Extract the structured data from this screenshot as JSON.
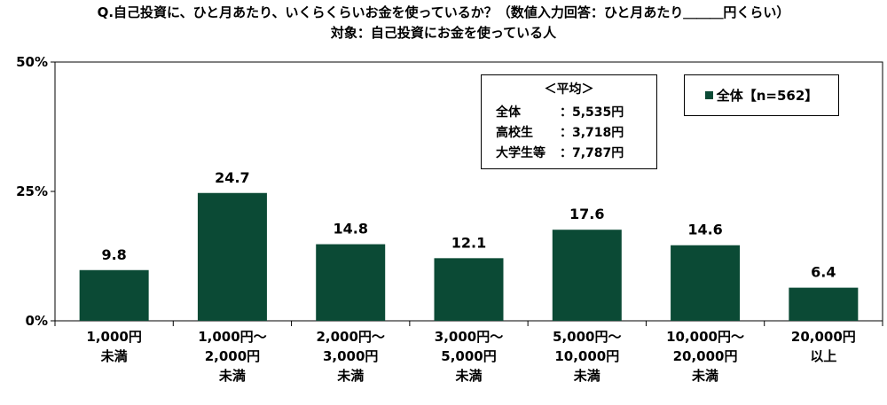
{
  "title_line1": "Q.自己投資に、ひと月あたり、いくらくらいお金を使っているか？（数値入力回答：ひと月あたり＿＿＿円くらい）",
  "title_line2": "対象：自己投資にお金を使っている人",
  "average": {
    "heading": "＜平均＞",
    "rows": [
      {
        "label": "全体",
        "value": "：5,535円"
      },
      {
        "label": "高校生",
        "value": "：3,718円"
      },
      {
        "label": "大学生等",
        "value": "：7,787円"
      }
    ]
  },
  "chart_data": {
    "type": "bar",
    "categories": [
      "1,000円\n未満",
      "1,000円～\n2,000円\n未満",
      "2,000円～\n3,000円\n未満",
      "3,000円～\n5,000円\n未満",
      "5,000円～\n10,000円\n未満",
      "10,000円～\n20,000円\n未満",
      "20,000円\n以上"
    ],
    "series": [
      {
        "name": "全体【n=562】",
        "values": [
          9.8,
          24.7,
          14.8,
          12.1,
          17.6,
          14.6,
          6.4
        ]
      }
    ],
    "data_labels": [
      "9.8",
      "24.7",
      "14.8",
      "12.1",
      "17.6",
      "14.6",
      "6.4"
    ],
    "yticks": [
      "0%",
      "25%",
      "50%"
    ],
    "ylim": [
      0,
      50
    ],
    "grid": false,
    "legend_position": "top-right",
    "bar_color": "#0b4a35"
  }
}
